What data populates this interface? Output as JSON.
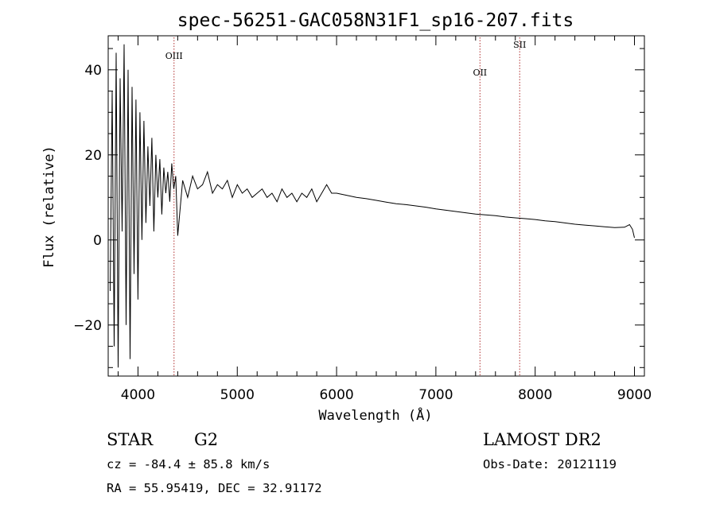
{
  "chart_data": {
    "type": "line",
    "title": "spec-56251-GAC058N31F1_sp16-207.fits",
    "xlabel": "Wavelength (Å)",
    "ylabel": "Flux (relative)",
    "xlim": [
      3700,
      9100
    ],
    "ylim": [
      -32,
      48
    ],
    "xticks": [
      4000,
      5000,
      6000,
      7000,
      8000,
      9000
    ],
    "yticks": [
      -20,
      0,
      20,
      40
    ],
    "grid": false,
    "series": [
      {
        "x": [
          3720,
          3740,
          3760,
          3780,
          3800,
          3820,
          3840,
          3860,
          3880,
          3900,
          3920,
          3940,
          3960,
          3980,
          4000,
          4020,
          4040,
          4060,
          4080,
          4100,
          4120,
          4140,
          4160,
          4180,
          4200,
          4220,
          4240,
          4260,
          4280,
          4300,
          4320,
          4340,
          4360,
          4380,
          4400,
          4450,
          4500,
          4550,
          4600,
          4650,
          4700,
          4750,
          4800,
          4850,
          4900,
          4950,
          5000,
          5050,
          5100,
          5150,
          5200,
          5250,
          5300,
          5350,
          5400,
          5450,
          5500,
          5550,
          5600,
          5650,
          5700,
          5750,
          5800,
          5850,
          5900,
          5950,
          6000,
          6100,
          6200,
          6300,
          6400,
          6500,
          6600,
          6700,
          6800,
          6900,
          7000,
          7100,
          7200,
          7300,
          7400,
          7500,
          7600,
          7700,
          7800,
          7900,
          8000,
          8100,
          8200,
          8300,
          8400,
          8500,
          8600,
          8700,
          8800,
          8900,
          8950,
          8980,
          9000
        ],
        "y": [
          -12,
          35,
          -25,
          44,
          -30,
          38,
          2,
          46,
          -20,
          40,
          -28,
          36,
          -8,
          33,
          -14,
          30,
          0,
          28,
          4,
          22,
          8,
          24,
          2,
          20,
          10,
          19,
          6,
          17,
          11,
          16,
          9,
          18,
          12,
          15,
          1,
          14,
          10,
          15,
          12,
          13,
          16,
          11,
          13,
          12,
          14,
          10,
          13,
          11,
          12,
          10,
          11,
          12,
          10,
          11,
          9,
          12,
          10,
          11,
          9,
          11,
          10,
          12,
          9,
          11,
          13,
          11,
          11,
          10.5,
          10,
          9.7,
          9.3,
          8.9,
          8.5,
          8.3,
          8.0,
          7.7,
          7.3,
          7.0,
          6.7,
          6.4,
          6.1,
          5.9,
          5.7,
          5.4,
          5.2,
          5.0,
          4.8,
          4.5,
          4.3,
          4.0,
          3.7,
          3.5,
          3.3,
          3.1,
          2.9,
          3.0,
          3.6,
          2.5,
          0.5
        ]
      }
    ],
    "lines": [
      {
        "label": "OIII",
        "x": 4363
      },
      {
        "label": "OII",
        "x": 7444
      },
      {
        "label": "SII",
        "x": 7844
      }
    ]
  },
  "info": {
    "classification": "STAR",
    "subclass": "G2",
    "survey": "LAMOST DR2",
    "cz": "cz = -84.4 ± 85.8 km/s",
    "obs_date": "Obs-Date: 20121119",
    "radec": "RA =  55.95419, DEC =  32.91172"
  }
}
